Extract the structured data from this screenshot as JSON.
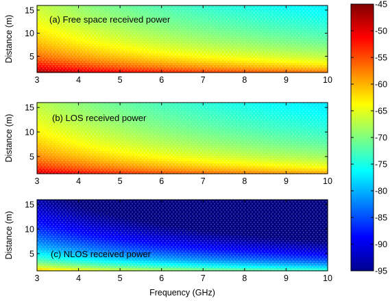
{
  "chart_data": {
    "type": "heatmap",
    "shared_xlabel": "Frequency (GHz)",
    "colorbar": {
      "range": [
        -95,
        -45
      ],
      "ticks": [
        -45,
        -50,
        -55,
        -60,
        -65,
        -70,
        -75,
        -80,
        -85,
        -90,
        -95
      ],
      "colormap": "jet"
    },
    "panels": [
      {
        "title": "(a) Free space received power",
        "xlabel": "",
        "ylabel": "Distance (m)",
        "xlim": [
          3,
          10
        ],
        "ylim": [
          1.5,
          16
        ],
        "xticks": [
          3,
          4,
          5,
          6,
          7,
          8,
          9,
          10
        ],
        "yticks": [
          5,
          10,
          15
        ],
        "model": {
          "c": -46.0,
          "freq_coef": 20,
          "dist_exp": 2.0,
          "d_ref": 1.5,
          "f_ref": 3
        },
        "approx_values_dBm": {
          "frequency_GHz": [
            3,
            10,
            3,
            10,
            3,
            10
          ],
          "distance_m": [
            2,
            2,
            8,
            8,
            16,
            16
          ],
          "power_dBm": [
            -48,
            -59,
            -60,
            -71,
            -66,
            -77
          ]
        }
      },
      {
        "title": "(b) LOS received power",
        "xlabel": "",
        "ylabel": "Distance (m)",
        "xlim": [
          3,
          10
        ],
        "ylim": [
          1.5,
          16
        ],
        "xticks": [
          3,
          4,
          5,
          6,
          7,
          8,
          9,
          10
        ],
        "yticks": [
          5,
          10,
          15
        ],
        "model": {
          "c": -48.5,
          "freq_coef": 20,
          "dist_exp": 1.8,
          "d_ref": 1.5,
          "f_ref": 3
        },
        "approx_values_dBm": {
          "frequency_GHz": [
            3,
            10,
            3,
            10,
            3,
            10
          ],
          "distance_m": [
            2,
            2,
            8,
            8,
            16,
            16
          ],
          "power_dBm": [
            -50,
            -61,
            -61,
            -72,
            -67,
            -77
          ]
        }
      },
      {
        "title": "(c) NLOS received power",
        "xlabel": "Frequency (GHz)",
        "ylabel": "Distance (m)",
        "xlim": [
          3,
          10
        ],
        "ylim": [
          1.5,
          16
        ],
        "xticks": [
          3,
          4,
          5,
          6,
          7,
          8,
          9,
          10
        ],
        "yticks": [
          5,
          10,
          15
        ],
        "model": {
          "c": -60.0,
          "freq_coef": 24,
          "dist_exp": 3.2,
          "d_ref": 1.5,
          "f_ref": 3
        },
        "approx_values_dBm": {
          "frequency_GHz": [
            3,
            10,
            3,
            10,
            3,
            10
          ],
          "distance_m": [
            2,
            2,
            8,
            8,
            16,
            16
          ],
          "power_dBm": [
            -64,
            -77,
            -83,
            -95,
            -93,
            -95
          ]
        }
      }
    ]
  }
}
